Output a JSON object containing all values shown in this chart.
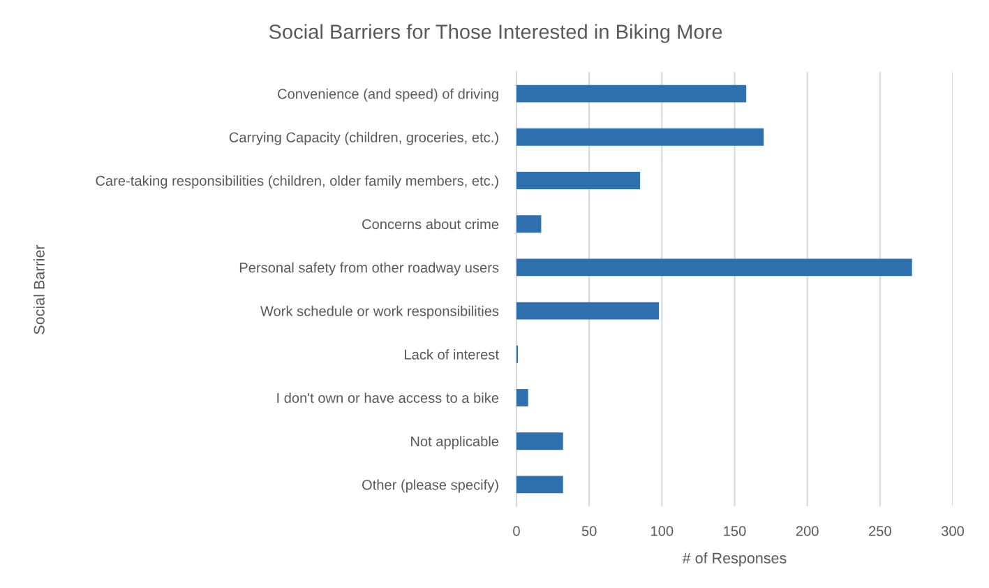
{
  "chart_data": {
    "type": "bar",
    "orientation": "horizontal",
    "title": "Social Barriers for Those Interested in Biking More",
    "xlabel": "# of Responses",
    "ylabel": "Social Barrier",
    "categories": [
      "Convenience (and speed) of driving",
      "Carrying Capacity (children, groceries, etc.)",
      "Care-taking responsibilities (children, older family members, etc.)",
      "Concerns about crime",
      "Personal safety from other roadway users",
      "Work schedule or work responsibilities",
      "Lack of interest",
      "I don't own or have access to a bike",
      "Not applicable",
      "Other (please specify)"
    ],
    "values": [
      158,
      170,
      85,
      17,
      272,
      98,
      1,
      8,
      32,
      32
    ],
    "color": "#2e70ae",
    "xlim": [
      0,
      300
    ],
    "xticks": [
      0,
      50,
      100,
      150,
      200,
      250,
      300
    ],
    "grid": "x"
  }
}
